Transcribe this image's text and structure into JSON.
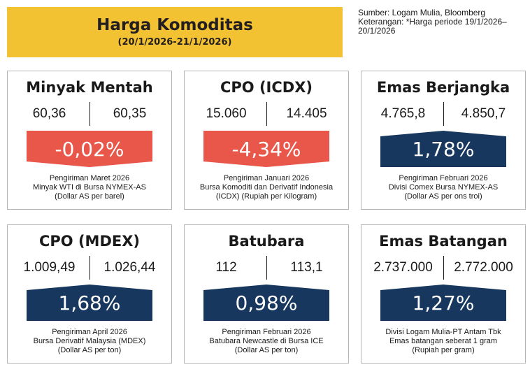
{
  "header": {
    "title": "Harga Komoditas",
    "period": "(20/1/2026-21/1/2026)",
    "source_line1": "Sumber: Logam Mulia, Bloomberg",
    "source_line2": "Keterangan: *Harga periode 19/1/2026–",
    "source_line3": "20/1/2026",
    "color_banner": "#f3c232"
  },
  "colors": {
    "down": "#e8574a",
    "up": "#17375e"
  },
  "cards": [
    {
      "title": "Minyak Mentah",
      "prev": "60,36",
      "curr": "60,35",
      "change": "-0,02%",
      "direction": "down",
      "note": [
        "Pengiriman Maret 2026",
        "Minyak WTI di Bursa NYMEX-AS",
        "(Dollar AS per barel)"
      ]
    },
    {
      "title": "CPO (ICDX)",
      "prev": "15.060",
      "curr": "14.405",
      "change": "-4,34%",
      "direction": "down",
      "note": [
        "Pengiriman Januari 2026",
        "Bursa Komoditi dan Derivatif Indonesia",
        "(ICDX) (Rupiah per Kilogram)"
      ]
    },
    {
      "title": "Emas Berjangka",
      "prev": "4.765,8",
      "curr": "4.850,7",
      "change": "1,78%",
      "direction": "up",
      "note": [
        "Pengiriman Februari 2026",
        "Divisi Comex Bursa NYMEX-AS",
        "(Dollar AS per ons troi)"
      ]
    },
    {
      "title": "CPO (MDEX)",
      "prev": "1.009,49",
      "curr": "1.026,44",
      "change": "1,68%",
      "direction": "up",
      "note": [
        "Pengiriman April 2026",
        "Bursa Derivatif Malaysia (MDEX)",
        "(Dollar AS per ton)"
      ]
    },
    {
      "title": "Batubara",
      "prev": "112",
      "curr": "113,1",
      "change": "0,98%",
      "direction": "up",
      "note": [
        "Pengiriman Februari 2026",
        "Batubara Newcastle di Bursa ICE",
        "(Dollar AS per ton)"
      ]
    },
    {
      "title": "Emas Batangan",
      "prev": "2.737.000",
      "curr": "2.772.000",
      "change": "1,27%",
      "direction": "up",
      "note": [
        "Divisi Logam Mulia-PT Antam Tbk",
        "Emas batangan seberat 1 gram",
        "(Rupiah per gram)"
      ]
    }
  ]
}
